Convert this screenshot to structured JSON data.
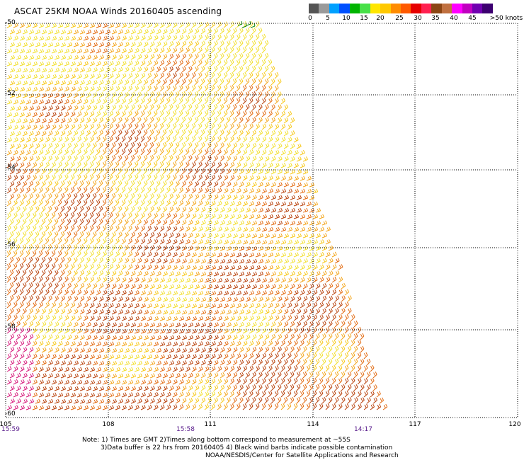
{
  "title": "ASCAT 25KM NOAA Winds 20160405 ascending",
  "legend": {
    "colors": [
      "#555555",
      "#9a9a9a",
      "#00a0ff",
      "#0050ff",
      "#00b400",
      "#48e048",
      "#ffe600",
      "#ffc800",
      "#ff8c00",
      "#ff5a00",
      "#e60000",
      "#ff2050",
      "#8b4513",
      "#c07040",
      "#ff00ff",
      "#c000c0",
      "#7000b0",
      "#3c0070"
    ],
    "labels": [
      "0",
      "5",
      "10",
      "15",
      "20",
      "25",
      "30",
      "35",
      "40",
      "45",
      ">50 knots"
    ]
  },
  "map": {
    "lat_labels": [
      "-50",
      "-52",
      "-54",
      "-56",
      "-58",
      "-60"
    ],
    "lon_labels": [
      "105",
      "108",
      "111",
      "114",
      "117",
      "120"
    ],
    "time_labels": [
      "15:59",
      "15:58",
      "14:17"
    ]
  },
  "notes": [
    "Note: 1) Times are GMT 2)Times along bottom correspond to measurement at ~55S",
    "3)Data buffer is 22 hrs from 20160405 4) Black wind barbs indicate possible contamination",
    "NOAA/NESDIS/Center for Satellite Applications and Research"
  ]
}
